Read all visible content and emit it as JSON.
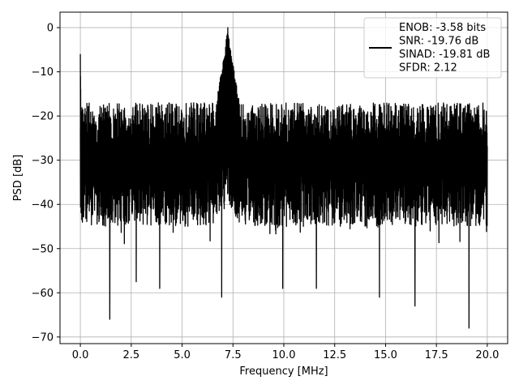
{
  "chart_data": {
    "type": "line",
    "title": "",
    "xlabel": "Frequency [MHz]",
    "ylabel": "PSD [dB]",
    "xlim": [
      -1.0,
      21.0
    ],
    "ylim": [
      -71.5,
      3.5
    ],
    "x_ticks": [
      0,
      2.5,
      5,
      7.5,
      10,
      12.5,
      15,
      17.5,
      20
    ],
    "x_tick_labels": [
      "0.0",
      "2.5",
      "5.0",
      "7.5",
      "10.0",
      "12.5",
      "15.0",
      "17.5",
      "20.0"
    ],
    "y_ticks": [
      0,
      -10,
      -20,
      -30,
      -40,
      -50,
      -60,
      -70
    ],
    "y_tick_labels": [
      "0",
      "−10",
      "−20",
      "−30",
      "−40",
      "−50",
      "−60",
      "−70"
    ],
    "grid": true,
    "legend_position": "top-right",
    "legend_lines": [
      "ENOB: -3.58 bits",
      "SNR: -19.76 dB",
      "SINAD: -19.81 dB",
      "SFDR: 2.12"
    ],
    "series": [
      {
        "color": "#000000",
        "description": "dense noisy PSD trace, 0 to 20 MHz",
        "noise_band_upper_dB": -17,
        "noise_band_lower_dB": -47,
        "peaks": [
          {
            "x": 0.0,
            "y": -6
          },
          {
            "x": 7.25,
            "y": 0
          }
        ],
        "deep_nulls": [
          {
            "x": 1.45,
            "y": -66
          },
          {
            "x": 2.75,
            "y": -57.5
          },
          {
            "x": 3.9,
            "y": -59
          },
          {
            "x": 6.95,
            "y": -61
          },
          {
            "x": 9.95,
            "y": -59
          },
          {
            "x": 11.6,
            "y": -59
          },
          {
            "x": 14.7,
            "y": -61
          },
          {
            "x": 16.45,
            "y": -63
          },
          {
            "x": 19.1,
            "y": -68
          }
        ]
      }
    ]
  }
}
